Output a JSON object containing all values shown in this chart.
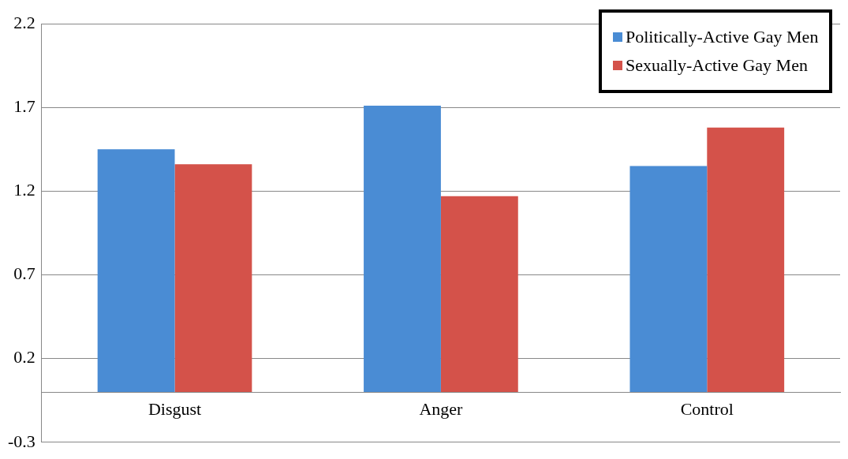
{
  "chart_data": {
    "type": "bar",
    "categories": [
      "Disgust",
      "Anger",
      "Control"
    ],
    "series": [
      {
        "name": "Politically-Active Gay Men",
        "color": "#4a8cd4",
        "values": [
          1.45,
          1.71,
          1.35
        ]
      },
      {
        "name": "Sexually-Active Gay Men",
        "color": "#d4524a",
        "values": [
          1.36,
          1.17,
          1.58
        ]
      }
    ],
    "ylim": [
      -0.3,
      2.2
    ],
    "yticks": [
      -0.3,
      0.2,
      0.7,
      1.2,
      1.7,
      2.2
    ],
    "grid": "y",
    "legend": "top right"
  }
}
